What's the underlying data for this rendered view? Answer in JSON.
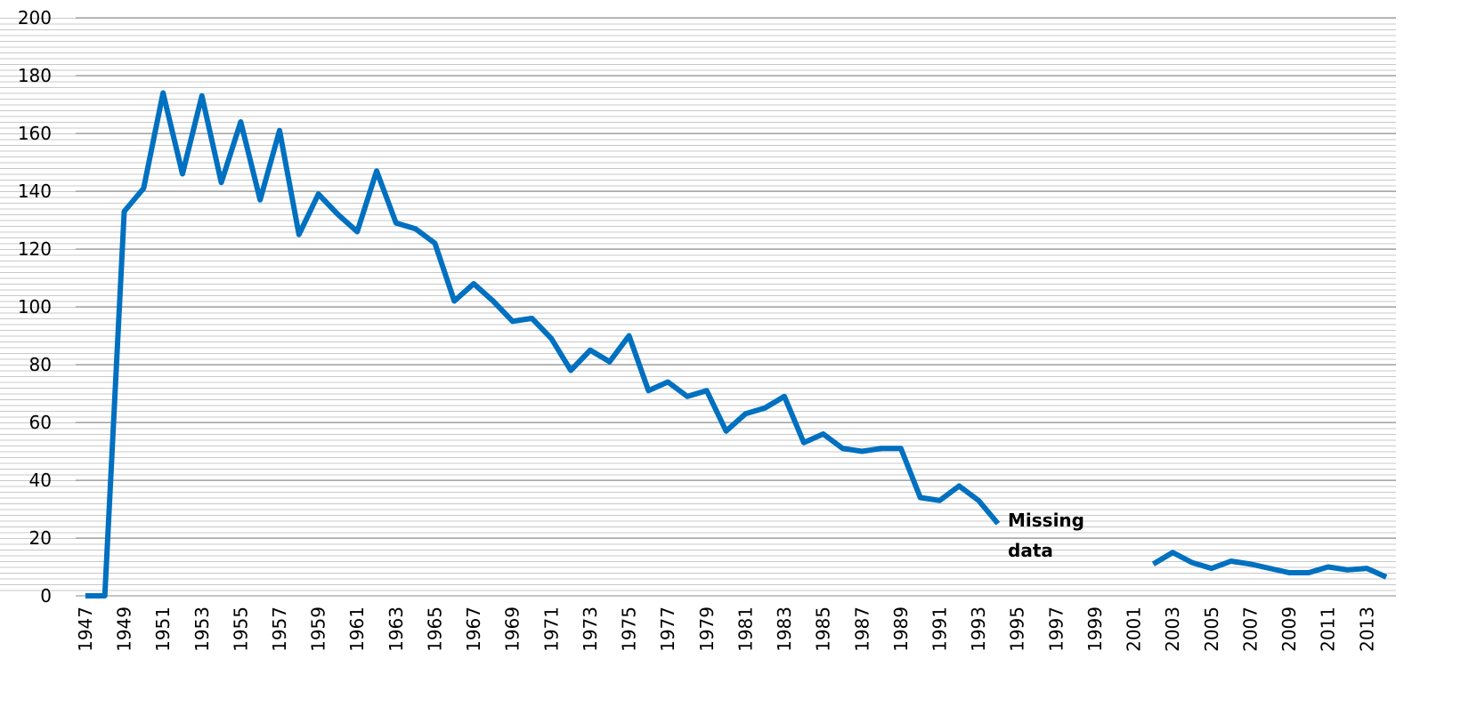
{
  "chart_data": {
    "type": "line",
    "categories": [
      "1947",
      null,
      "1949",
      null,
      "1951",
      null,
      "1953",
      null,
      "1955",
      null,
      "1957",
      null,
      "1959",
      null,
      "1961",
      null,
      "1963",
      null,
      "1965",
      null,
      "1967",
      null,
      "1969",
      null,
      "1971",
      null,
      "1973",
      null,
      "1975",
      null,
      "1977",
      null,
      "1979",
      null,
      "1981",
      null,
      "1983",
      null,
      "1985",
      null,
      "1987",
      null,
      "1989",
      null,
      "1991",
      null,
      "1993",
      null,
      "1995",
      null,
      "1997",
      null,
      "1999",
      null,
      "2001",
      null,
      "2003",
      null,
      "2005",
      null,
      "2007",
      null,
      "2009",
      null,
      "2011",
      null,
      "2013",
      null
    ],
    "series": [
      {
        "color": "#0070c0",
        "values": [
          0,
          0,
          133,
          141,
          174,
          146,
          173,
          143,
          164,
          137,
          161,
          125,
          139,
          132,
          126,
          147,
          129,
          127,
          122,
          102,
          108,
          102,
          95,
          96,
          89,
          78,
          85,
          81,
          90,
          71,
          74,
          69,
          71,
          57,
          63,
          65,
          69,
          53,
          56,
          51,
          50,
          51,
          51,
          34,
          33,
          38,
          33,
          25,
          null,
          null,
          null,
          null,
          null,
          null,
          null,
          11,
          15,
          11.5,
          9.5,
          12,
          11,
          9.5,
          8,
          8,
          10,
          9,
          9.5,
          6.5
        ]
      }
    ],
    "ylim": [
      0,
      200
    ],
    "yticks": [
      0,
      20,
      40,
      60,
      80,
      100,
      120,
      140,
      160,
      180,
      200
    ],
    "grid": true,
    "annotation": "Missing data"
  }
}
